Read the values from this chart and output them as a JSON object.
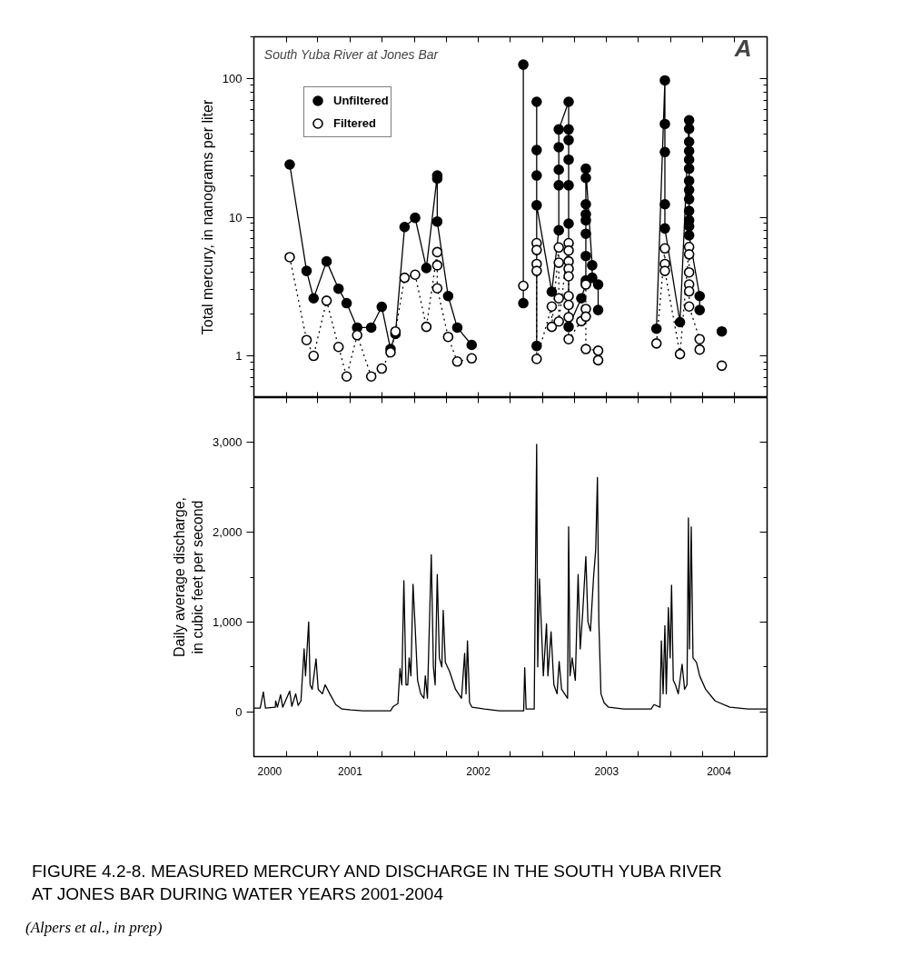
{
  "chart_data": [
    {
      "type": "line",
      "ylabel": "Total mercury, in nanograms per liter",
      "log": true,
      "tick_labels": "y",
      "legend": "top left",
      "annotations": [
        "South Yuba River at Jones Bar",
        "A"
      ],
      "xlim": [
        "2000-10-01",
        "2004-10-01"
      ],
      "xticks": [
        {
          "value": "2001-01-01",
          "label": null
        },
        {
          "value": "2001-04-01",
          "label": null
        },
        {
          "value": "2001-07-01",
          "label": null
        },
        {
          "value": "2001-10-01",
          "label": null
        },
        {
          "value": "2002-01-01",
          "label": null
        },
        {
          "value": "2002-04-01",
          "label": null
        },
        {
          "value": "2002-07-01",
          "label": null
        },
        {
          "value": "2002-10-01",
          "label": null
        },
        {
          "value": "2003-01-01",
          "label": null
        },
        {
          "value": "2003-04-01",
          "label": null
        },
        {
          "value": "2003-07-01",
          "label": null
        },
        {
          "value": "2003-10-01",
          "label": null
        },
        {
          "value": "2004-01-01",
          "label": null
        },
        {
          "value": "2004-04-01",
          "label": null
        },
        {
          "value": "2004-07-01",
          "label": null
        }
      ],
      "ylim": [
        0.5,
        200
      ],
      "yticks": [
        1,
        10,
        100,
        {
          "value": 0.5,
          "label": null
        },
        {
          "value": 0.6,
          "label": null
        },
        {
          "value": 0.7,
          "label": null
        },
        {
          "value": 0.8,
          "label": null
        },
        {
          "value": 0.9,
          "label": null
        },
        {
          "value": 2,
          "label": null
        },
        {
          "value": 3,
          "label": null
        },
        {
          "value": 4,
          "label": null
        },
        {
          "value": 5,
          "label": null
        },
        {
          "value": 6,
          "label": null
        },
        {
          "value": 7,
          "label": null
        },
        {
          "value": 8,
          "label": null
        },
        {
          "value": 9,
          "label": null
        },
        {
          "value": 20,
          "label": null
        },
        {
          "value": 30,
          "label": null
        },
        {
          "value": 40,
          "label": null
        },
        {
          "value": 50,
          "label": null
        },
        {
          "value": 60,
          "label": null
        },
        {
          "value": 70,
          "label": null
        },
        {
          "value": 80,
          "label": null
        },
        {
          "value": 90,
          "label": null
        },
        {
          "value": 200,
          "label": null
        }
      ],
      "series": [
        {
          "name": "Unfiltered",
          "color": "#000000",
          "marker": "circle",
          "line_style": "solid",
          "x": [
            "2001-01-11",
            "2001-02-28",
            "2001-03-20",
            "2001-04-26",
            "2001-05-30",
            "2001-06-22",
            "2001-07-22",
            "2001-08-31",
            "2001-09-30",
            "2001-10-25",
            "2001-11-08",
            "2001-12-04",
            "2002-01-03",
            "2002-02-04",
            "2002-03-07",
            "2002-03-07",
            "2002-03-07",
            "2002-04-07",
            "2002-05-03",
            "2002-06-13",
            "2002-08-25",
            "2002-11-07",
            "2002-11-07",
            "2002-11-25",
            "2002-12-15",
            "2002-12-15",
            "2002-12-15",
            "2002-12-15",
            "2002-12-15",
            "2003-01-27",
            "2003-02-16",
            "2003-02-16",
            "2003-02-16",
            "2003-02-16",
            "2003-02-16",
            "2003-03-16",
            "2003-03-16",
            "2003-03-16",
            "2003-03-16",
            "2003-03-16",
            "2003-03-16",
            "2003-03-16",
            "2003-04-21",
            "2003-05-04",
            "2003-05-04",
            "2003-05-04",
            "2003-05-04",
            "2003-05-04",
            "2003-05-04",
            "2003-05-04",
            "2003-05-04",
            "2003-05-04",
            "2003-05-22",
            "2003-05-22",
            "2003-06-08",
            "2003-06-08",
            "2003-08-25",
            "2003-11-21",
            "2003-12-15",
            "2003-12-15",
            "2003-12-15",
            "2003-12-15",
            "2003-12-15",
            "2004-01-27",
            "2004-02-22",
            "2004-02-22",
            "2004-02-22",
            "2004-02-22",
            "2004-02-22",
            "2004-02-22",
            "2004-02-22",
            "2004-02-22",
            "2004-02-22",
            "2004-02-22",
            "2004-02-22",
            "2004-02-22",
            "2004-02-22",
            "2004-03-23",
            "2004-03-23",
            "2004-04-19",
            "2004-05-25"
          ],
          "values": [
            24,
            4.1,
            2.6,
            4.8,
            3.05,
            2.4,
            1.6,
            1.6,
            2.26,
            1.12,
            1.44,
            8.5,
            9.9,
            4.3,
            20,
            19,
            9.3,
            2.7,
            1.6,
            1.2,
            null,
            126,
            2.4,
            null,
            1.18,
            68,
            30.5,
            20,
            12.2,
            2.9,
            8.05,
            17,
            22,
            32,
            43,
            68,
            43,
            36,
            26,
            17,
            9.0,
            1.62,
            2.6,
            3.3,
            3.5,
            5.25,
            7.6,
            9.5,
            10.5,
            12.4,
            19.2,
            22.4,
            4.5,
            3.66,
            3.27,
            2.14,
            null,
            1.57,
            97,
            47,
            29.5,
            12.4,
            8.3,
            1.75,
            50,
            43.5,
            35,
            30,
            26,
            22.4,
            18.3,
            15.7,
            13.5,
            11.1,
            9.5,
            8.6,
            7.4,
            2.7,
            2.14,
            null,
            1.5
          ]
        },
        {
          "name": "Filtered",
          "color": "#000000",
          "marker": "circle",
          "line_style": "dotted",
          "x": [
            "2001-01-11",
            "2001-02-28",
            "2001-03-20",
            "2001-04-26",
            "2001-05-30",
            "2001-06-22",
            "2001-07-22",
            "2001-08-31",
            "2001-09-30",
            "2001-10-25",
            "2001-11-08",
            "2001-12-04",
            "2002-01-03",
            "2002-02-04",
            "2002-03-07",
            "2002-03-07",
            "2002-03-07",
            "2002-04-07",
            "2002-05-03",
            "2002-06-13",
            "2002-08-25",
            "2002-11-07",
            "2002-11-25",
            "2002-12-15",
            "2002-12-15",
            "2002-12-15",
            "2002-12-15",
            "2002-12-15",
            "2003-01-27",
            "2003-01-27",
            "2003-02-16",
            "2003-02-16",
            "2003-02-16",
            "2003-02-16",
            "2003-03-16",
            "2003-03-16",
            "2003-03-16",
            "2003-03-16",
            "2003-03-16",
            "2003-03-16",
            "2003-03-16",
            "2003-03-16",
            "2003-03-16",
            "2003-04-21",
            "2003-05-04",
            "2003-05-04",
            "2003-05-04",
            "2003-05-04",
            "2003-06-08",
            "2003-06-08",
            "2003-08-25",
            "2003-11-21",
            "2003-12-15",
            "2003-12-15",
            "2003-12-15",
            "2004-01-27",
            "2004-02-22",
            "2004-02-22",
            "2004-02-22",
            "2004-02-22",
            "2004-02-22",
            "2004-02-22",
            "2004-03-23",
            "2004-03-23",
            "2004-04-19",
            "2004-05-25"
          ],
          "values": [
            5.15,
            1.3,
            1.0,
            2.5,
            1.16,
            0.71,
            1.41,
            0.71,
            0.81,
            1.06,
            1.5,
            3.66,
            3.85,
            1.62,
            5.6,
            4.5,
            3.07,
            1.37,
            0.91,
            0.96,
            null,
            3.2,
            null,
            6.5,
            5.8,
            4.6,
            4.1,
            0.95,
            2.27,
            1.62,
            6.05,
            4.7,
            2.6,
            1.77,
            6.5,
            5.75,
            4.8,
            4.25,
            3.75,
            2.7,
            2.33,
            1.9,
            1.32,
            1.78,
            3.27,
            2.18,
            1.92,
            1.12,
            1.09,
            0.93,
            null,
            1.23,
            5.96,
            4.6,
            4.1,
            1.03,
            6.1,
            5.4,
            4.0,
            3.27,
            2.92,
            2.27,
            1.32,
            1.11,
            null,
            0.85
          ]
        }
      ]
    },
    {
      "type": "line",
      "ylabel": "Daily average discharge,\nin cubic feet per second",
      "annotations": [
        "FIGURE 4.2-8.  MEASURED MERCURY AND DISCHARGE IN THE SOUTH YUBA RIVER AT JONES BAR DURING WATER YEARS 2001-2004",
        "(Alpers et al., in prep)"
      ],
      "xlim": [
        "2000-10-01",
        "2004-10-01"
      ],
      "xticks": [
        {
          "value": "2000-11-15",
          "label": "2000"
        },
        {
          "value": "2001-07-02",
          "label": "2001"
        },
        {
          "value": "2002-07-02",
          "label": "2002"
        },
        {
          "value": "2003-07-02",
          "label": "2003"
        },
        {
          "value": "2004-05-17",
          "label": "2004"
        },
        {
          "value": "2001-01-01",
          "label": null
        },
        {
          "value": "2001-04-01",
          "label": null
        },
        {
          "value": "2001-07-01",
          "label": null
        },
        {
          "value": "2001-10-01",
          "label": null
        },
        {
          "value": "2002-01-01",
          "label": null
        },
        {
          "value": "2002-04-01",
          "label": null
        },
        {
          "value": "2002-07-01",
          "label": null
        },
        {
          "value": "2002-10-01",
          "label": null
        },
        {
          "value": "2003-01-01",
          "label": null
        },
        {
          "value": "2003-04-01",
          "label": null
        },
        {
          "value": "2003-07-01",
          "label": null
        },
        {
          "value": "2003-10-01",
          "label": null
        },
        {
          "value": "2004-01-01",
          "label": null
        },
        {
          "value": "2004-04-01",
          "label": null
        },
        {
          "value": "2004-07-01",
          "label": null
        }
      ],
      "ylim": [
        -500,
        3500
      ],
      "yticks": [
        0,
        {
          "value": 1000,
          "label": "1,000"
        },
        {
          "value": 2000,
          "label": "2,000"
        },
        {
          "value": 3000,
          "label": "3,000"
        },
        {
          "value": 500,
          "label": null
        },
        {
          "value": 1500,
          "label": null
        },
        {
          "value": 2500,
          "label": null
        }
      ],
      "series": [
        {
          "color": "#000000",
          "x": [
            "2000-10-01",
            "2000-10-19",
            "2000-10-28",
            "2000-11-03",
            "2000-12-01",
            "2000-12-02",
            "2000-12-07",
            "2000-12-16",
            "2000-12-22",
            "2001-01-11",
            "2001-01-17",
            "2001-01-28",
            "2001-02-04",
            "2001-02-12",
            "2001-02-21",
            "2001-02-25",
            "2001-03-06",
            "2001-03-10",
            "2001-03-16",
            "2001-03-27",
            "2001-04-02",
            "2001-04-14",
            "2001-04-22",
            "2001-05-05",
            "2001-05-22",
            "2001-06-09",
            "2001-07-04",
            "2001-08-08",
            "2001-10-25",
            "2001-11-02",
            "2001-11-15",
            "2001-11-21",
            "2001-11-26",
            "2001-12-02",
            "2001-12-08",
            "2001-12-13",
            "2001-12-17",
            "2001-12-22",
            "2001-12-28",
            "2002-01-03",
            "2002-01-10",
            "2002-01-19",
            "2002-01-28",
            "2002-02-01",
            "2002-02-07",
            "2002-02-18",
            "2002-02-24",
            "2002-03-01",
            "2002-03-07",
            "2002-03-13",
            "2002-03-20",
            "2002-03-24",
            "2002-03-30",
            "2002-04-11",
            "2002-04-28",
            "2002-05-15",
            "2002-05-24",
            "2002-05-28",
            "2002-06-01",
            "2002-06-07",
            "2002-06-14",
            "2002-07-19",
            "2002-08-31",
            "2002-11-08",
            "2002-11-11",
            "2002-11-15",
            "2002-12-08",
            "2002-12-15",
            "2002-12-18",
            "2002-12-23",
            "2003-01-03",
            "2003-01-12",
            "2003-01-16",
            "2003-01-25",
            "2003-02-02",
            "2003-02-11",
            "2003-02-17",
            "2003-02-24",
            "2003-03-13",
            "2003-03-16",
            "2003-03-20",
            "2003-03-26",
            "2003-04-04",
            "2003-04-12",
            "2003-04-18",
            "2003-04-25",
            "2003-05-04",
            "2003-05-10",
            "2003-05-17",
            "2003-05-26",
            "2003-06-01",
            "2003-06-06",
            "2003-06-10",
            "2003-06-16",
            "2003-06-25",
            "2003-07-08",
            "2003-08-20",
            "2003-11-06",
            "2003-11-14",
            "2003-12-01",
            "2003-12-05",
            "2003-12-10",
            "2003-12-15",
            "2003-12-19",
            "2003-12-25",
            "2003-12-30",
            "2004-01-03",
            "2004-01-08",
            "2004-01-14",
            "2004-01-22",
            "2004-02-02",
            "2004-02-09",
            "2004-02-16",
            "2004-02-20",
            "2004-02-23",
            "2004-02-28",
            "2004-03-04",
            "2004-03-14",
            "2004-03-23",
            "2004-04-09",
            "2004-05-06",
            "2004-06-17",
            "2004-08-08",
            "2004-10-01"
          ],
          "values": [
            40,
            40,
            220,
            40,
            50,
            120,
            50,
            190,
            50,
            230,
            60,
            200,
            70,
            120,
            700,
            400,
            1000,
            300,
            250,
            590,
            250,
            200,
            300,
            200,
            80,
            30,
            20,
            10,
            10,
            60,
            90,
            480,
            300,
            1460,
            300,
            300,
            600,
            400,
            1420,
            950,
            350,
            200,
            150,
            400,
            150,
            1750,
            500,
            300,
            1530,
            600,
            500,
            1130,
            550,
            450,
            250,
            150,
            650,
            200,
            790,
            100,
            50,
            30,
            10,
            10,
            490,
            30,
            30,
            2980,
            500,
            1480,
            400,
            980,
            400,
            890,
            300,
            200,
            560,
            250,
            150,
            2060,
            400,
            600,
            350,
            1530,
            700,
            1100,
            1730,
            1000,
            900,
            1500,
            1800,
            2610,
            1000,
            200,
            100,
            50,
            30,
            30,
            80,
            50,
            790,
            200,
            960,
            200,
            1160,
            600,
            1410,
            350,
            300,
            200,
            530,
            250,
            300,
            2160,
            700,
            2060,
            600,
            550,
            400,
            250,
            120,
            50,
            30,
            30
          ]
        }
      ]
    }
  ]
}
